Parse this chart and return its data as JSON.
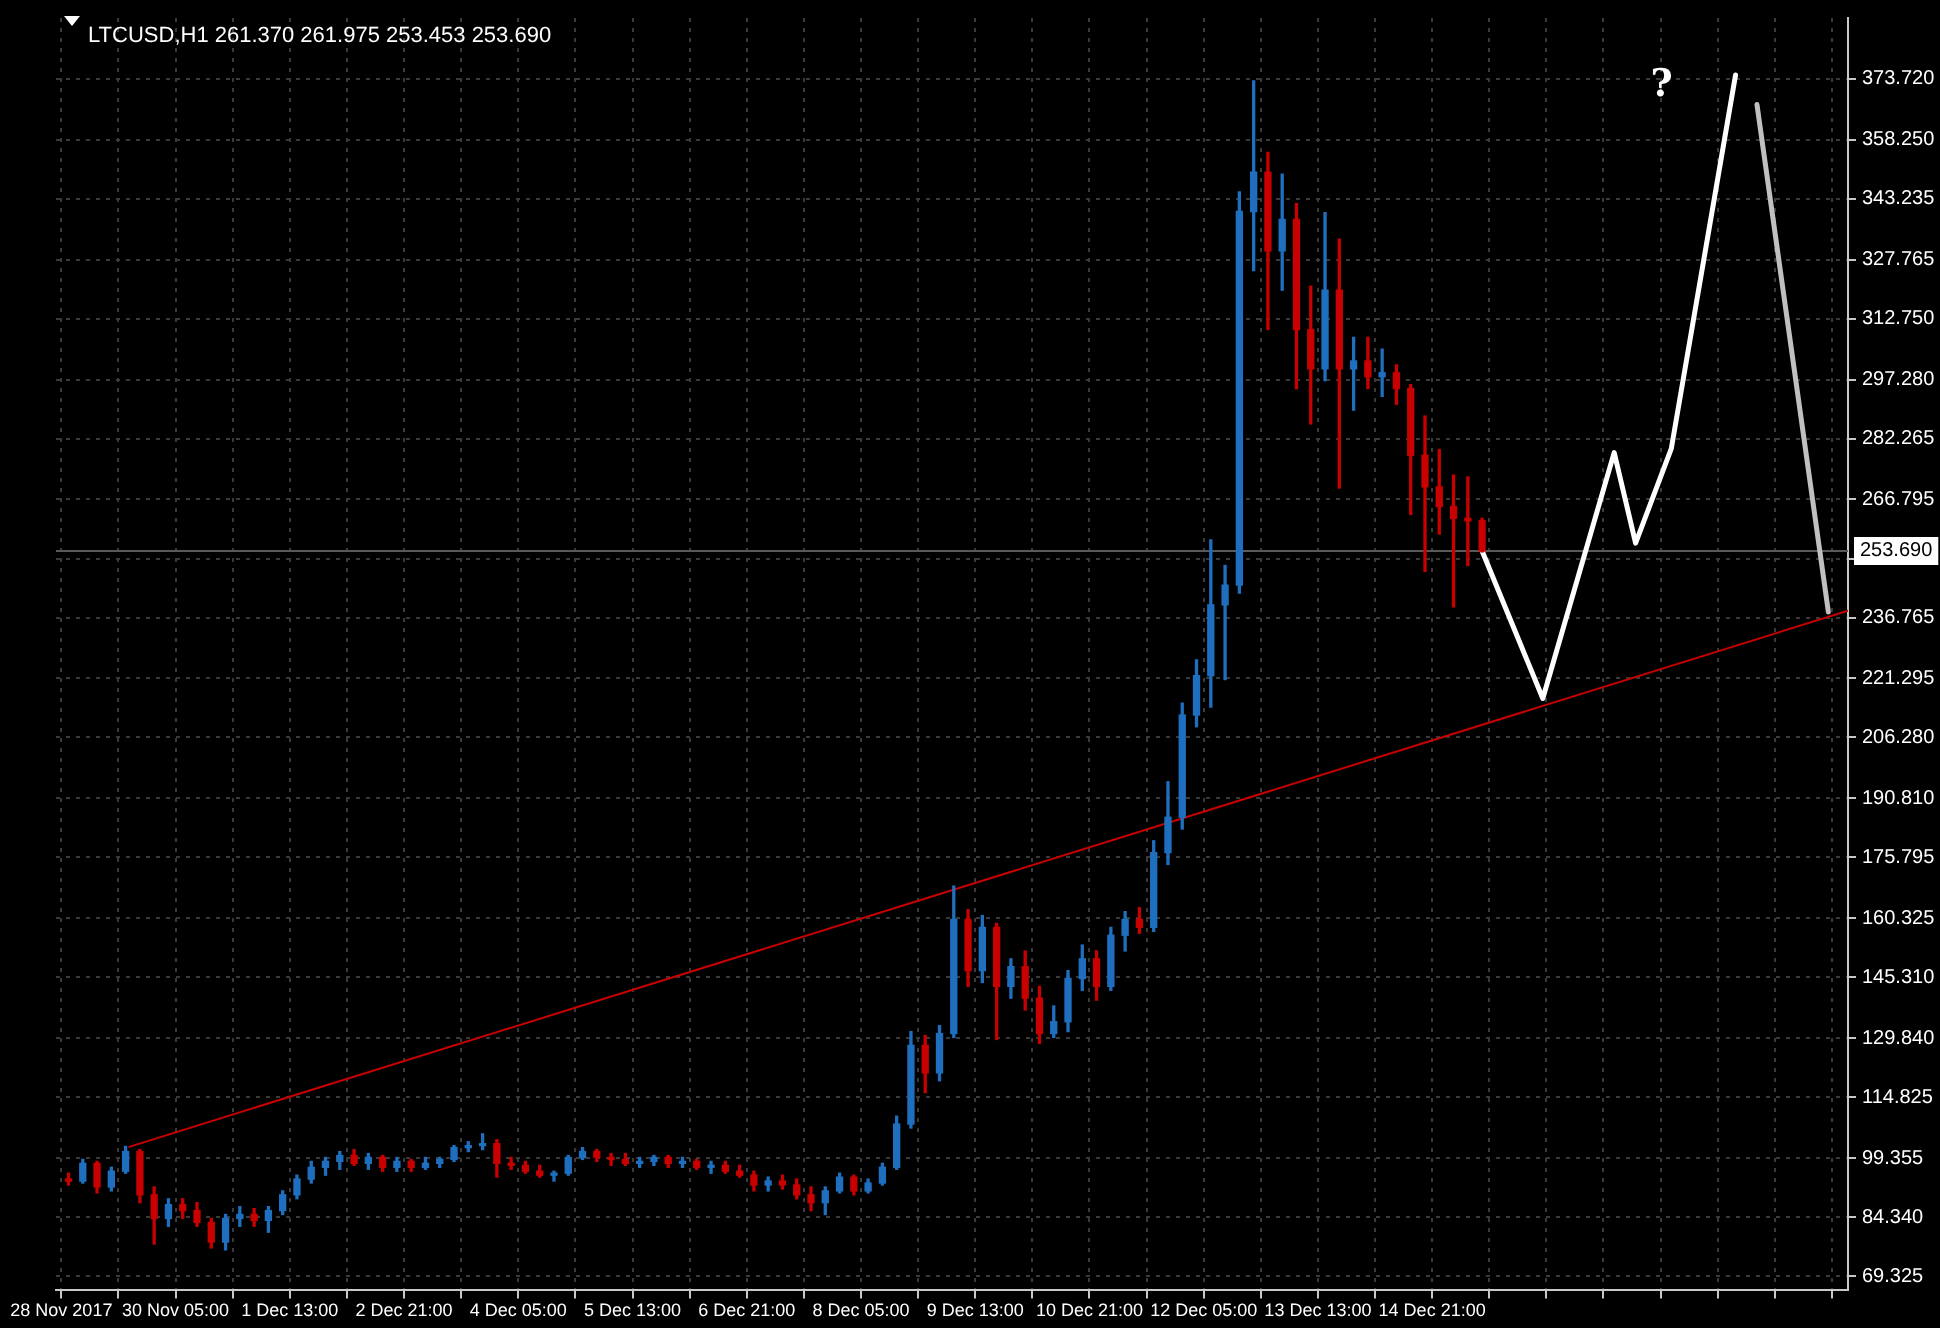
{
  "chart_data": {
    "type": "candlestick",
    "title": "LTCUSD,H1 261.370 261.975 253.453 253.690",
    "x": [
      "2017-11-28T23:00",
      "2017-11-29T03:00",
      "2017-11-29T07:00",
      "2017-11-29T11:00",
      "2017-11-29T15:00",
      "2017-11-29T19:00",
      "2017-11-29T23:00",
      "2017-11-30T03:00",
      "2017-11-30T07:00",
      "2017-11-30T11:00",
      "2017-11-30T15:00",
      "2017-11-30T19:00",
      "2017-11-30T23:00",
      "2017-12-01T03:00",
      "2017-12-01T07:00",
      "2017-12-01T11:00",
      "2017-12-01T15:00",
      "2017-12-01T19:00",
      "2017-12-01T23:00",
      "2017-12-02T03:00",
      "2017-12-02T07:00",
      "2017-12-02T11:00",
      "2017-12-02T15:00",
      "2017-12-02T19:00",
      "2017-12-02T23:00",
      "2017-12-03T03:00",
      "2017-12-03T07:00",
      "2017-12-03T11:00",
      "2017-12-03T15:00",
      "2017-12-03T19:00",
      "2017-12-03T23:00",
      "2017-12-04T03:00",
      "2017-12-04T07:00",
      "2017-12-04T11:00",
      "2017-12-04T15:00",
      "2017-12-04T19:00",
      "2017-12-04T23:00",
      "2017-12-05T03:00",
      "2017-12-05T07:00",
      "2017-12-05T11:00",
      "2017-12-05T15:00",
      "2017-12-05T19:00",
      "2017-12-05T23:00",
      "2017-12-06T03:00",
      "2017-12-06T07:00",
      "2017-12-06T11:00",
      "2017-12-06T15:00",
      "2017-12-06T19:00",
      "2017-12-06T23:00",
      "2017-12-07T03:00",
      "2017-12-07T07:00",
      "2017-12-07T11:00",
      "2017-12-07T15:00",
      "2017-12-07T19:00",
      "2017-12-07T23:00",
      "2017-12-08T03:00",
      "2017-12-08T07:00",
      "2017-12-08T11:00",
      "2017-12-08T15:00",
      "2017-12-08T19:00",
      "2017-12-08T23:00",
      "2017-12-09T03:00",
      "2017-12-09T07:00",
      "2017-12-09T11:00",
      "2017-12-09T15:00",
      "2017-12-09T19:00",
      "2017-12-09T23:00",
      "2017-12-10T03:00",
      "2017-12-10T07:00",
      "2017-12-10T11:00",
      "2017-12-10T15:00",
      "2017-12-10T19:00",
      "2017-12-10T23:00",
      "2017-12-11T03:00",
      "2017-12-11T07:00",
      "2017-12-11T11:00",
      "2017-12-11T15:00",
      "2017-12-11T19:00",
      "2017-12-11T23:00",
      "2017-12-12T03:00",
      "2017-12-12T07:00",
      "2017-12-12T11:00",
      "2017-12-12T15:00",
      "2017-12-12T19:00",
      "2017-12-12T23:00",
      "2017-12-13T03:00",
      "2017-12-13T07:00",
      "2017-12-13T11:00",
      "2017-12-13T15:00",
      "2017-12-13T19:00",
      "2017-12-13T23:00",
      "2017-12-14T03:00",
      "2017-12-14T07:00",
      "2017-12-14T11:00",
      "2017-12-14T15:00",
      "2017-12-14T19:00",
      "2017-12-14T23:00",
      "2017-12-15T03:00",
      "2017-12-15T07:00",
      "2017-12-15T11:00"
    ],
    "ohlc": [
      [
        94,
        95.5,
        92.5,
        93.5
      ],
      [
        93.5,
        99,
        93,
        98
      ],
      [
        98,
        98.5,
        90.5,
        92
      ],
      [
        92,
        97,
        91,
        96
      ],
      [
        96,
        102.3,
        95.5,
        101
      ],
      [
        101,
        101.5,
        88,
        90
      ],
      [
        90,
        92,
        77.5,
        84
      ],
      [
        84,
        89,
        82,
        87.5
      ],
      [
        87.5,
        89,
        84,
        86
      ],
      [
        86,
        88,
        82,
        83
      ],
      [
        83,
        84,
        76.5,
        78
      ],
      [
        78,
        85,
        76,
        84
      ],
      [
        84,
        87,
        82,
        85
      ],
      [
        85,
        86.5,
        82,
        83.5
      ],
      [
        83.5,
        87,
        80.5,
        86
      ],
      [
        86,
        91,
        85,
        90
      ],
      [
        90,
        95,
        89,
        94
      ],
      [
        94,
        98.5,
        93,
        97
      ],
      [
        97,
        99.5,
        95,
        98.5
      ],
      [
        98.5,
        101,
        96.5,
        100
      ],
      [
        100,
        101.5,
        97.5,
        98
      ],
      [
        98,
        100.5,
        96.5,
        99.5
      ],
      [
        99.5,
        100,
        96,
        97
      ],
      [
        97,
        99.5,
        96,
        98.5
      ],
      [
        98.5,
        99,
        96,
        97
      ],
      [
        97,
        99.5,
        96.5,
        98
      ],
      [
        98,
        99.5,
        97,
        99
      ],
      [
        99,
        102.5,
        98.5,
        102
      ],
      [
        102,
        103.5,
        101,
        102.5
      ],
      [
        102.5,
        105.5,
        101.5,
        103
      ],
      [
        103,
        104,
        94.5,
        98
      ],
      [
        98,
        99.5,
        96.5,
        97.5
      ],
      [
        97.5,
        98.5,
        95.5,
        96
      ],
      [
        96,
        97.5,
        94.5,
        95
      ],
      [
        95,
        96,
        93.5,
        95.5
      ],
      [
        95.5,
        100,
        95,
        99.5
      ],
      [
        99.5,
        102,
        99,
        101
      ],
      [
        101,
        101.5,
        98.5,
        99.5
      ],
      [
        99.5,
        100.5,
        97.5,
        99
      ],
      [
        99,
        100.5,
        97.5,
        98
      ],
      [
        98,
        99.5,
        97,
        98.5
      ],
      [
        98.5,
        100,
        97.5,
        99.5
      ],
      [
        99.5,
        100,
        97,
        98
      ],
      [
        98,
        99.5,
        97,
        98.5
      ],
      [
        98.5,
        99,
        96.5,
        97
      ],
      [
        97,
        98.5,
        95.5,
        97.5
      ],
      [
        97.5,
        98.5,
        95.5,
        96
      ],
      [
        96,
        97.5,
        94.5,
        95
      ],
      [
        95,
        96,
        91,
        92.5
      ],
      [
        92.5,
        94.5,
        91,
        93.5
      ],
      [
        93.5,
        95,
        91.5,
        92.5
      ],
      [
        92.5,
        94,
        89,
        90
      ],
      [
        90,
        92,
        86,
        88
      ],
      [
        88,
        92,
        85,
        91
      ],
      [
        91,
        95.5,
        90.5,
        94.5
      ],
      [
        94.5,
        95,
        90,
        91
      ],
      [
        91,
        94,
        90.5,
        93
      ],
      [
        93,
        98,
        92.5,
        97
      ],
      [
        97,
        110,
        96.5,
        108
      ],
      [
        108,
        131.5,
        107,
        128
      ],
      [
        128,
        130.5,
        116,
        121
      ],
      [
        121,
        133,
        119,
        131
      ],
      [
        131,
        168.5,
        130,
        160
      ],
      [
        160,
        162.5,
        143,
        147
      ],
      [
        147,
        161,
        144,
        158
      ],
      [
        158,
        159,
        129.5,
        143
      ],
      [
        143,
        150,
        140,
        148
      ],
      [
        148,
        152,
        137,
        140
      ],
      [
        140,
        143,
        128.5,
        131
      ],
      [
        131,
        138,
        130,
        134
      ],
      [
        134,
        147,
        131.5,
        145
      ],
      [
        145,
        153.5,
        142,
        150
      ],
      [
        150,
        152,
        139.5,
        143
      ],
      [
        143,
        158,
        142,
        156
      ],
      [
        156,
        162,
        152,
        160
      ],
      [
        160,
        163,
        156.5,
        158
      ],
      [
        158,
        180,
        157,
        177
      ],
      [
        177,
        195,
        174,
        186
      ],
      [
        186,
        215,
        183,
        212
      ],
      [
        212,
        226,
        209,
        222
      ],
      [
        222,
        256.5,
        214,
        240
      ],
      [
        240,
        250,
        221,
        245
      ],
      [
        245,
        345,
        243,
        340
      ],
      [
        340,
        373.2,
        325,
        350
      ],
      [
        350,
        355,
        310,
        330
      ],
      [
        330,
        349.5,
        320,
        338
      ],
      [
        338,
        342,
        295,
        310
      ],
      [
        310,
        321,
        286,
        300
      ],
      [
        300,
        339.7,
        297,
        320
      ],
      [
        320,
        333,
        269.7,
        300
      ],
      [
        300,
        308,
        289.5,
        302
      ],
      [
        302,
        308,
        295,
        298
      ],
      [
        298,
        305,
        293,
        299
      ],
      [
        299,
        301,
        291,
        295
      ],
      [
        295,
        296,
        263,
        278
      ],
      [
        278,
        288,
        248.5,
        270
      ],
      [
        270,
        279.5,
        258,
        265
      ],
      [
        265,
        273,
        239.5,
        262
      ],
      [
        262,
        272.5,
        250,
        261.37
      ],
      [
        261.37,
        261.975,
        253.453,
        253.69
      ]
    ],
    "colors": [
      "#c80000",
      "#1f6fbf",
      "#c80000",
      "#1f6fbf",
      "#1f6fbf",
      "#c80000",
      "#c80000",
      "#1f6fbf",
      "#c80000",
      "#c80000",
      "#c80000",
      "#1f6fbf",
      "#1f6fbf",
      "#c80000",
      "#1f6fbf",
      "#1f6fbf",
      "#1f6fbf",
      "#1f6fbf",
      "#1f6fbf",
      "#1f6fbf",
      "#c80000",
      "#1f6fbf",
      "#c80000",
      "#1f6fbf",
      "#c80000",
      "#1f6fbf",
      "#1f6fbf",
      "#1f6fbf",
      "#1f6fbf",
      "#1f6fbf",
      "#c80000",
      "#c80000",
      "#c80000",
      "#c80000",
      "#1f6fbf",
      "#1f6fbf",
      "#1f6fbf",
      "#c80000",
      "#c80000",
      "#c80000",
      "#1f6fbf",
      "#1f6fbf",
      "#c80000",
      "#1f6fbf",
      "#c80000",
      "#1f6fbf",
      "#c80000",
      "#c80000",
      "#c80000",
      "#1f6fbf",
      "#c80000",
      "#c80000",
      "#c80000",
      "#1f6fbf",
      "#1f6fbf",
      "#c80000",
      "#1f6fbf",
      "#1f6fbf",
      "#1f6fbf",
      "#1f6fbf",
      "#c80000",
      "#1f6fbf",
      "#1f6fbf",
      "#c80000",
      "#1f6fbf",
      "#c80000",
      "#1f6fbf",
      "#c80000",
      "#c80000",
      "#1f6fbf",
      "#1f6fbf",
      "#1f6fbf",
      "#c80000",
      "#1f6fbf",
      "#1f6fbf",
      "#c80000",
      "#1f6fbf",
      "#1f6fbf",
      "#1f6fbf",
      "#1f6fbf",
      "#1f6fbf",
      "#1f6fbf",
      "#1f6fbf",
      "#1f6fbf",
      "#c80000",
      "#1f6fbf",
      "#c80000",
      "#c80000",
      "#1f6fbf",
      "#c80000",
      "#1f6fbf",
      "#c80000",
      "#1f6fbf",
      "#c80000",
      "#c80000",
      "#c80000",
      "#c80000",
      "#c80000",
      "#c80000",
      "#c80000"
    ],
    "series": [
      {
        "type": "line",
        "x": [
          "2017-11-29T16:00",
          "2017-12-19T17:30"
        ],
        "values": [
          102.2,
          238.5
        ],
        "color": "#c80000"
      },
      {
        "type": "line",
        "x": [
          "2017-12-15T11:00",
          "2017-12-16T04:00",
          "2017-12-17T00:00",
          "2017-12-17T06:00",
          "2017-12-17T16:00",
          "2017-12-18T10:00"
        ],
        "values": [
          253.7,
          216.2,
          278.7,
          255.7,
          279.7,
          374.7
        ],
        "color": "#ffffff"
      },
      {
        "type": "line",
        "x": [
          "2017-12-18T16:00",
          "2017-12-19T12:00"
        ],
        "values": [
          367.2,
          238.2
        ],
        "color": "#c0c0c0"
      }
    ],
    "xlim": [
      "2017-11-28T19:30",
      "2017-12-19T17:30"
    ],
    "xticks": [
      {
        "value": "2017-11-28T21:00",
        "label": "28 Nov 2017"
      },
      {
        "value": "2017-11-29T13:00",
        "label": null
      },
      {
        "value": "2017-11-30T05:00",
        "label": "30 Nov 05:00"
      },
      {
        "value": "2017-11-30T21:00",
        "label": null
      },
      {
        "value": "2017-12-01T13:00",
        "label": "1 Dec 13:00"
      },
      {
        "value": "2017-12-02T05:00",
        "label": null
      },
      {
        "value": "2017-12-02T21:00",
        "label": "2 Dec 21:00"
      },
      {
        "value": "2017-12-03T13:00",
        "label": null
      },
      {
        "value": "2017-12-04T05:00",
        "label": "4 Dec 05:00"
      },
      {
        "value": "2017-12-04T21:00",
        "label": null
      },
      {
        "value": "2017-12-05T13:00",
        "label": "5 Dec 13:00"
      },
      {
        "value": "2017-12-06T05:00",
        "label": null
      },
      {
        "value": "2017-12-06T21:00",
        "label": "6 Dec 21:00"
      },
      {
        "value": "2017-12-07T13:00",
        "label": null
      },
      {
        "value": "2017-12-08T05:00",
        "label": "8 Dec 05:00"
      },
      {
        "value": "2017-12-08T21:00",
        "label": null
      },
      {
        "value": "2017-12-09T13:00",
        "label": "9 Dec 13:00"
      },
      {
        "value": "2017-12-10T05:00",
        "label": null
      },
      {
        "value": "2017-12-10T21:00",
        "label": "10 Dec 21:00"
      },
      {
        "value": "2017-12-11T13:00",
        "label": null
      },
      {
        "value": "2017-12-12T05:00",
        "label": "12 Dec 05:00"
      },
      {
        "value": "2017-12-12T21:00",
        "label": null
      },
      {
        "value": "2017-12-13T13:00",
        "label": "13 Dec 13:00"
      },
      {
        "value": "2017-12-14T05:00",
        "label": null
      },
      {
        "value": "2017-12-14T21:00",
        "label": "14 Dec 21:00"
      },
      {
        "value": "2017-12-15T13:00",
        "label": null
      },
      {
        "value": "2017-12-16T05:00",
        "label": null
      },
      {
        "value": "2017-12-16T21:00",
        "label": null
      },
      {
        "value": "2017-12-17T13:00",
        "label": null
      },
      {
        "value": "2017-12-18T05:00",
        "label": null
      },
      {
        "value": "2017-12-18T21:00",
        "label": null
      },
      {
        "value": "2017-12-19T13:00",
        "label": null
      }
    ],
    "ylim": [
      65.7,
      389.2
    ],
    "yticks": [
      {
        "value": 69.325,
        "label": "69.325"
      },
      {
        "value": 84.34,
        "label": "84.340"
      },
      {
        "value": 99.355,
        "label": "99.355"
      },
      {
        "value": 114.825,
        "label": "114.825"
      },
      {
        "value": 129.84,
        "label": "129.840"
      },
      {
        "value": 145.31,
        "label": "145.310"
      },
      {
        "value": 160.325,
        "label": "160.325"
      },
      {
        "value": 175.795,
        "label": "175.795"
      },
      {
        "value": 190.81,
        "label": "190.810"
      },
      {
        "value": 206.28,
        "label": "206.280"
      },
      {
        "value": 221.295,
        "label": "221.295"
      },
      {
        "value": 236.765,
        "label": "236.765"
      },
      {
        "value": 251.78,
        "label": null
      },
      {
        "value": 266.795,
        "label": "266.795"
      },
      {
        "value": 282.265,
        "label": "282.265"
      },
      {
        "value": 297.28,
        "label": "297.280"
      },
      {
        "value": 312.75,
        "label": "312.750"
      },
      {
        "value": 327.765,
        "label": "327.765"
      },
      {
        "value": 343.235,
        "label": "343.235"
      },
      {
        "value": 358.25,
        "label": "358.250"
      },
      {
        "value": 373.72,
        "label": "373.720"
      }
    ],
    "grid": true,
    "legend": false,
    "marker": "none",
    "ref_lines": [
      {
        "axis": "y",
        "value": 253.69,
        "label": "253.690",
        "color": "#5a5a5a"
      }
    ],
    "annotations": [
      "?"
    ]
  }
}
